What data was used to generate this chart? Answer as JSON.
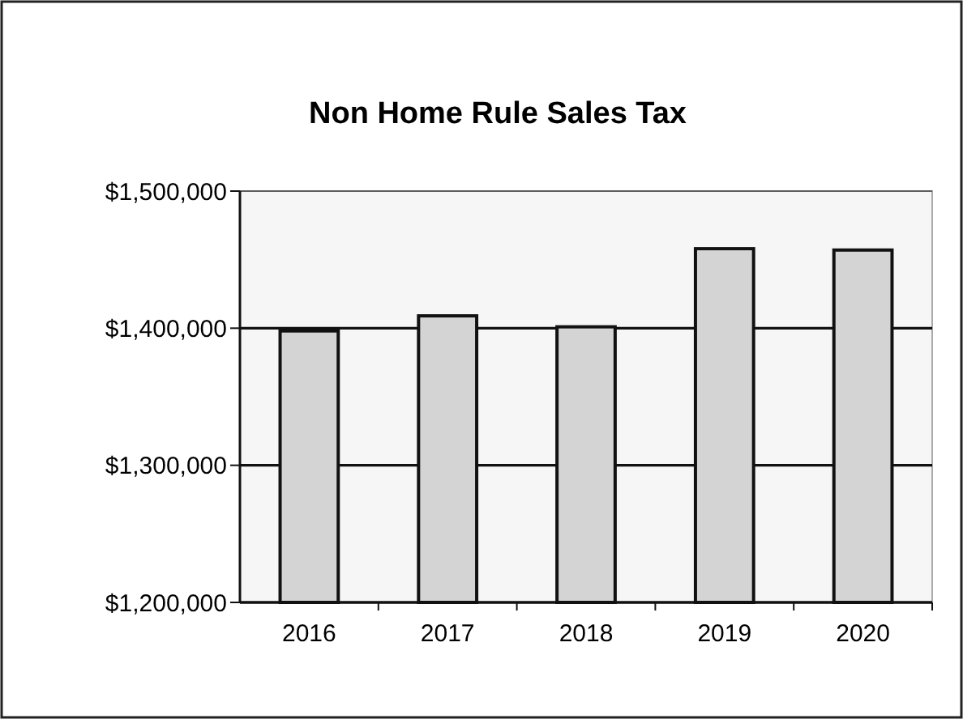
{
  "chart_data": {
    "type": "bar",
    "title": "Non Home Rule Sales Tax",
    "categories": [
      "2016",
      "2017",
      "2018",
      "2019",
      "2020"
    ],
    "values": [
      1398000,
      1409000,
      1401000,
      1458000,
      1457000
    ],
    "color": "#d4d4d4",
    "ylim": [
      1200000,
      1500000
    ],
    "yticks": [
      {
        "value": 1200000,
        "label": "$1,200,000"
      },
      {
        "value": 1300000,
        "label": "$1,300,000"
      },
      {
        "value": 1400000,
        "label": "$1,400,000"
      },
      {
        "value": 1500000,
        "label": "$1,500,000"
      }
    ],
    "grid": "y"
  }
}
